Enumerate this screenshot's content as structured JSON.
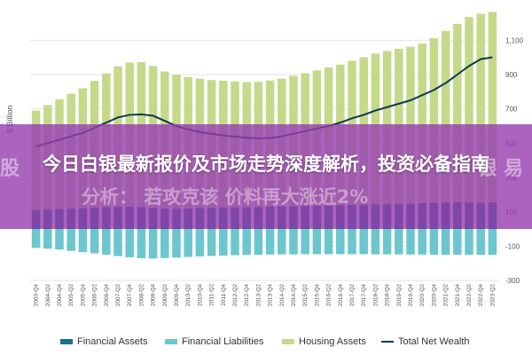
{
  "headline": {
    "title": "今日白银最新报价及市场走势深度解析，投资必备指南",
    "bg_left": "股",
    "bg_right": "银  易",
    "bg_sub": "分析：  若攻克该      价料再大涨近2%"
  },
  "chart_data": {
    "type": "bar",
    "ylabel": "$ Billion",
    "ylim": [
      -300,
      1200
    ],
    "yticks": [
      -300,
      -100,
      100,
      300,
      500,
      700,
      900,
      1100
    ],
    "ytick_labels": [
      "-300",
      "-100",
      "100",
      "300",
      "500",
      "700",
      "900",
      "1,100"
    ],
    "categories": [
      "2003-Q4",
      "2004-Q2",
      "2004-Q4",
      "2005-Q2",
      "2005-Q4",
      "2006-Q2",
      "2006-Q4",
      "2007-Q2",
      "2007-Q4",
      "2008-Q2",
      "2008-Q4",
      "2009-Q2",
      "2009-Q4",
      "2010-Q2",
      "2010-Q4",
      "2011-Q2",
      "2011-Q4",
      "2012-Q2",
      "2012-Q4",
      "2013-Q2",
      "2013-Q4",
      "2014-Q2",
      "2014-Q4",
      "2015-Q2",
      "2015-Q4",
      "2016-Q2",
      "2016-Q4",
      "2017-Q2",
      "2017-Q4",
      "2018-Q2",
      "2018-Q4",
      "2019-Q2",
      "2019-Q4",
      "2020-Q2",
      "2020-Q4",
      "2021-Q2",
      "2021-Q4",
      "2022-Q2",
      "2022-Q4",
      "2023-Q2"
    ],
    "series": [
      {
        "name": "Financial Assets",
        "kind": "bar",
        "color": "#1b6f86",
        "values": [
          110,
          112,
          115,
          118,
          120,
          123,
          126,
          128,
          130,
          127,
          120,
          118,
          118,
          120,
          121,
          123,
          124,
          125,
          126,
          128,
          130,
          131,
          132,
          133,
          134,
          136,
          138,
          140,
          141,
          142,
          143,
          145,
          147,
          150,
          152,
          154,
          156,
          155,
          154,
          155
        ]
      },
      {
        "name": "Financial Liabilities",
        "kind": "bar",
        "color": "#6cc6ce",
        "values": [
          -110,
          -115,
          -120,
          -128,
          -135,
          -142,
          -150,
          -158,
          -165,
          -170,
          -172,
          -170,
          -167,
          -163,
          -160,
          -157,
          -155,
          -153,
          -151,
          -150,
          -149,
          -148,
          -148,
          -147,
          -147,
          -147,
          -147,
          -147,
          -147,
          -148,
          -148,
          -148,
          -149,
          -149,
          -150,
          -150,
          -150,
          -151,
          -151,
          -151
        ]
      },
      {
        "name": "Housing Assets",
        "kind": "bar",
        "color": "#c5d98a",
        "values": [
          580,
          610,
          640,
          670,
          700,
          740,
          780,
          820,
          840,
          845,
          830,
          800,
          780,
          765,
          755,
          745,
          740,
          735,
          730,
          730,
          735,
          745,
          760,
          775,
          790,
          805,
          820,
          840,
          860,
          880,
          895,
          905,
          915,
          930,
          960,
          1000,
          1040,
          1080,
          1100,
          1110
        ]
      },
      {
        "name": "Total Net Wealth",
        "kind": "line",
        "color": "#0d3b4f",
        "values": [
          480,
          500,
          520,
          540,
          560,
          590,
          620,
          650,
          665,
          668,
          660,
          630,
          600,
          580,
          565,
          555,
          545,
          538,
          532,
          528,
          530,
          540,
          555,
          570,
          585,
          600,
          620,
          645,
          665,
          690,
          710,
          730,
          750,
          780,
          810,
          850,
          900,
          950,
          990,
          1000
        ]
      }
    ],
    "legend_position": "bottom"
  }
}
